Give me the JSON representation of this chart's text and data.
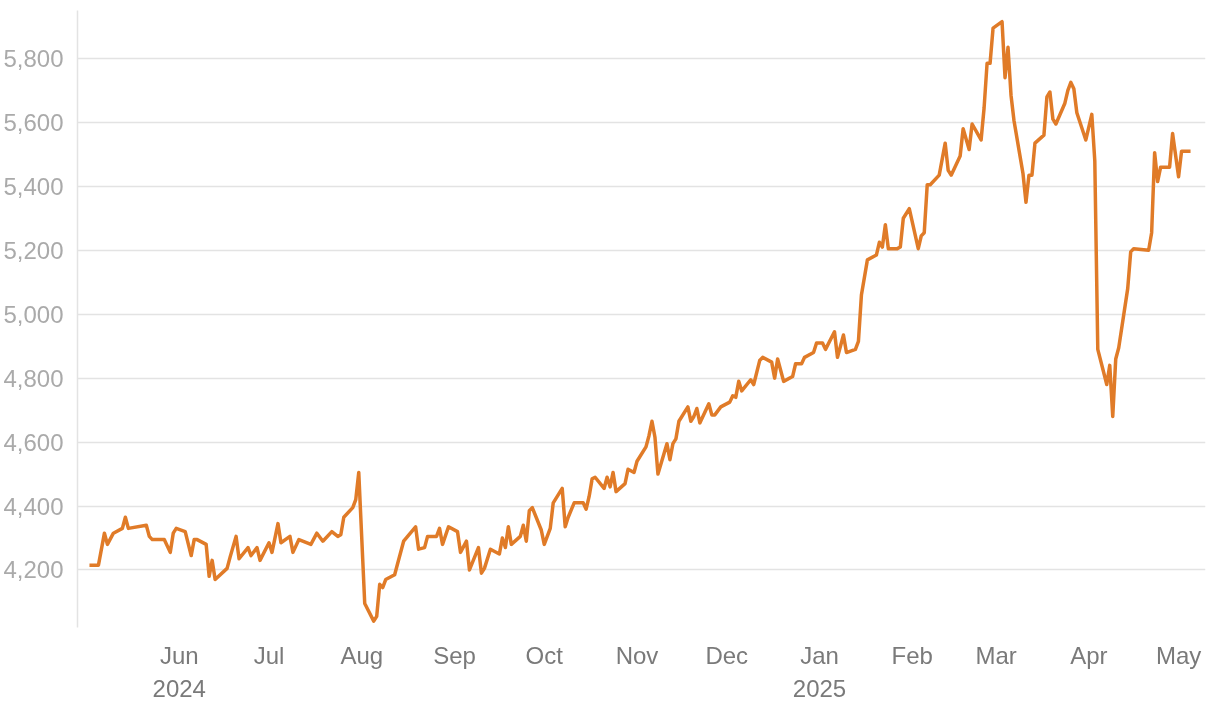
{
  "chart_data": {
    "type": "line",
    "x": [
      "2024-05-02",
      "2024-05-05",
      "2024-05-07",
      "2024-05-08",
      "2024-05-10",
      "2024-05-13",
      "2024-05-14",
      "2024-05-15",
      "2024-05-21",
      "2024-05-22",
      "2024-05-23",
      "2024-05-27",
      "2024-05-29",
      "2024-05-30",
      "2024-05-31",
      "2024-06-03",
      "2024-06-05",
      "2024-06-06",
      "2024-06-07",
      "2024-06-10",
      "2024-06-11",
      "2024-06-12",
      "2024-06-13",
      "2024-06-17",
      "2024-06-18",
      "2024-06-20",
      "2024-06-21",
      "2024-06-24",
      "2024-06-25",
      "2024-06-27",
      "2024-06-28",
      "2024-07-01",
      "2024-07-02",
      "2024-07-04",
      "2024-07-05",
      "2024-07-08",
      "2024-07-09",
      "2024-07-11",
      "2024-07-15",
      "2024-07-17",
      "2024-07-19",
      "2024-07-22",
      "2024-07-24",
      "2024-07-25",
      "2024-07-26",
      "2024-07-29",
      "2024-07-30",
      "2024-07-31",
      "2024-08-02",
      "2024-08-05",
      "2024-08-06",
      "2024-08-07",
      "2024-08-08",
      "2024-08-09",
      "2024-08-12",
      "2024-08-13",
      "2024-08-15",
      "2024-08-19",
      "2024-08-20",
      "2024-08-22",
      "2024-08-23",
      "2024-08-26",
      "2024-08-27",
      "2024-08-28",
      "2024-08-30",
      "2024-09-02",
      "2024-09-03",
      "2024-09-05",
      "2024-09-06",
      "2024-09-09",
      "2024-09-10",
      "2024-09-11",
      "2024-09-13",
      "2024-09-16",
      "2024-09-17",
      "2024-09-18",
      "2024-09-19",
      "2024-09-20",
      "2024-09-23",
      "2024-09-24",
      "2024-09-25",
      "2024-09-26",
      "2024-09-27",
      "2024-09-30",
      "2024-10-01",
      "2024-10-03",
      "2024-10-04",
      "2024-10-07",
      "2024-10-08",
      "2024-10-09",
      "2024-10-11",
      "2024-10-14",
      "2024-10-15",
      "2024-10-16",
      "2024-10-17",
      "2024-10-18",
      "2024-10-21",
      "2024-10-22",
      "2024-10-23",
      "2024-10-24",
      "2024-10-25",
      "2024-10-28",
      "2024-10-29",
      "2024-10-31",
      "2024-11-01",
      "2024-11-04",
      "2024-11-05",
      "2024-11-06",
      "2024-11-07",
      "2024-11-08",
      "2024-11-11",
      "2024-11-12",
      "2024-11-13",
      "2024-11-14",
      "2024-11-15",
      "2024-11-18",
      "2024-11-19",
      "2024-11-20",
      "2024-11-21",
      "2024-11-22",
      "2024-11-25",
      "2024-11-26",
      "2024-11-27",
      "2024-11-29",
      "2024-12-02",
      "2024-12-03",
      "2024-12-04",
      "2024-12-05",
      "2024-12-06",
      "2024-12-09",
      "2024-12-10",
      "2024-12-12",
      "2024-12-13",
      "2024-12-16",
      "2024-12-17",
      "2024-12-18",
      "2024-12-20",
      "2024-12-23",
      "2024-12-24",
      "2024-12-26",
      "2024-12-27",
      "2024-12-30",
      "2024-12-31",
      "2025-01-02",
      "2025-01-03",
      "2025-01-06",
      "2025-01-07",
      "2025-01-09",
      "2025-01-10",
      "2025-01-13",
      "2025-01-14",
      "2025-01-15",
      "2025-01-17",
      "2025-01-20",
      "2025-01-21",
      "2025-01-22",
      "2025-01-23",
      "2025-01-24",
      "2025-01-27",
      "2025-01-28",
      "2025-01-29",
      "2025-01-31",
      "2025-02-03",
      "2025-02-04",
      "2025-02-05",
      "2025-02-06",
      "2025-02-07",
      "2025-02-10",
      "2025-02-12",
      "2025-02-13",
      "2025-02-14",
      "2025-02-17",
      "2025-02-18",
      "2025-02-20",
      "2025-02-21",
      "2025-02-24",
      "2025-02-25",
      "2025-02-26",
      "2025-02-27",
      "2025-02-28",
      "2025-03-03",
      "2025-03-04",
      "2025-03-05",
      "2025-03-06",
      "2025-03-07",
      "2025-03-10",
      "2025-03-11",
      "2025-03-12",
      "2025-03-13",
      "2025-03-14",
      "2025-03-17",
      "2025-03-18",
      "2025-03-19",
      "2025-03-20",
      "2025-03-21",
      "2025-03-24",
      "2025-03-25",
      "2025-03-26",
      "2025-03-27",
      "2025-03-28",
      "2025-03-31",
      "2025-04-02",
      "2025-04-03",
      "2025-04-04",
      "2025-04-07",
      "2025-04-08",
      "2025-04-09",
      "2025-04-10",
      "2025-04-11",
      "2025-04-14",
      "2025-04-15",
      "2025-04-16",
      "2025-04-21",
      "2025-04-22",
      "2025-04-23",
      "2025-04-24",
      "2025-04-25",
      "2025-04-28",
      "2025-04-29",
      "2025-05-01",
      "2025-05-02",
      "2025-05-05"
    ],
    "series": [
      {
        "color": "#e07b28",
        "values": [
          4215,
          4215,
          4315,
          4280,
          4315,
          4330,
          4365,
          4330,
          4340,
          4305,
          4295,
          4295,
          4255,
          4315,
          4330,
          4320,
          4245,
          4295,
          4295,
          4280,
          4180,
          4230,
          4170,
          4205,
          4240,
          4305,
          4235,
          4270,
          4245,
          4270,
          4230,
          4285,
          4255,
          4345,
          4285,
          4305,
          4255,
          4295,
          4280,
          4315,
          4290,
          4320,
          4305,
          4310,
          4365,
          4395,
          4420,
          4505,
          4095,
          4040,
          4055,
          4155,
          4145,
          4170,
          4185,
          4220,
          4290,
          4335,
          4265,
          4270,
          4305,
          4305,
          4330,
          4280,
          4335,
          4320,
          4255,
          4290,
          4200,
          4270,
          4190,
          4205,
          4265,
          4250,
          4300,
          4270,
          4335,
          4280,
          4305,
          4340,
          4290,
          4385,
          4395,
          4325,
          4280,
          4330,
          4410,
          4455,
          4335,
          4365,
          4410,
          4410,
          4390,
          4430,
          4485,
          4490,
          4455,
          4490,
          4460,
          4505,
          4445,
          4470,
          4515,
          4505,
          4540,
          4585,
          4620,
          4665,
          4615,
          4500,
          4595,
          4545,
          4595,
          4610,
          4665,
          4710,
          4665,
          4680,
          4705,
          4660,
          4720,
          4685,
          4685,
          4710,
          4725,
          4745,
          4740,
          4790,
          4760,
          4795,
          4780,
          4855,
          4865,
          4850,
          4800,
          4860,
          4790,
          4805,
          4845,
          4845,
          4865,
          4880,
          4910,
          4910,
          4890,
          4945,
          4865,
          4935,
          4880,
          4890,
          4915,
          5060,
          5170,
          5185,
          5225,
          5210,
          5280,
          5205,
          5205,
          5210,
          5300,
          5330,
          5205,
          5245,
          5255,
          5405,
          5405,
          5435,
          5535,
          5450,
          5435,
          5495,
          5580,
          5515,
          5595,
          5545,
          5645,
          5785,
          5785,
          5895,
          5915,
          5740,
          5835,
          5685,
          5605,
          5440,
          5350,
          5435,
          5435,
          5535,
          5560,
          5680,
          5695,
          5610,
          5595,
          5660,
          5700,
          5725,
          5705,
          5630,
          5545,
          5625,
          5480,
          4890,
          4780,
          4840,
          4680,
          4860,
          4895,
          5080,
          5195,
          5205,
          5200,
          5255,
          5505,
          5415,
          5460,
          5460,
          5565,
          5430,
          5510,
          5510
        ]
      }
    ],
    "xlim": [
      "2024-04-28",
      "2025-05-10"
    ],
    "xticks": [
      {
        "value": "2024-06-01",
        "label": "Jun\n2024"
      },
      {
        "value": "2024-07-01",
        "label": "Jul"
      },
      {
        "value": "2024-08-01",
        "label": "Aug"
      },
      {
        "value": "2024-09-01",
        "label": "Sep"
      },
      {
        "value": "2024-10-01",
        "label": "Oct"
      },
      {
        "value": "2024-11-01",
        "label": "Nov"
      },
      {
        "value": "2024-12-01",
        "label": "Dec"
      },
      {
        "value": "2025-01-01",
        "label": "Jan\n2025"
      },
      {
        "value": "2025-02-01",
        "label": "Feb"
      },
      {
        "value": "2025-03-01",
        "label": "Mar"
      },
      {
        "value": "2025-04-01",
        "label": "Apr"
      },
      {
        "value": "2025-05-01",
        "label": "May"
      }
    ],
    "ylim": [
      4020,
      5950
    ],
    "yticks": [
      {
        "value": 4200,
        "label": "4,200"
      },
      {
        "value": 4400,
        "label": "4,400"
      },
      {
        "value": 4600,
        "label": "4,600"
      },
      {
        "value": 4800,
        "label": "4,800"
      },
      {
        "value": 5000,
        "label": "5,000"
      },
      {
        "value": 5200,
        "label": "5,200"
      },
      {
        "value": 5400,
        "label": "5,400"
      },
      {
        "value": 5600,
        "label": "5,600"
      },
      {
        "value": 5800,
        "label": "5,800"
      }
    ],
    "grid": "y",
    "marker": "none",
    "line_style": "solid"
  }
}
